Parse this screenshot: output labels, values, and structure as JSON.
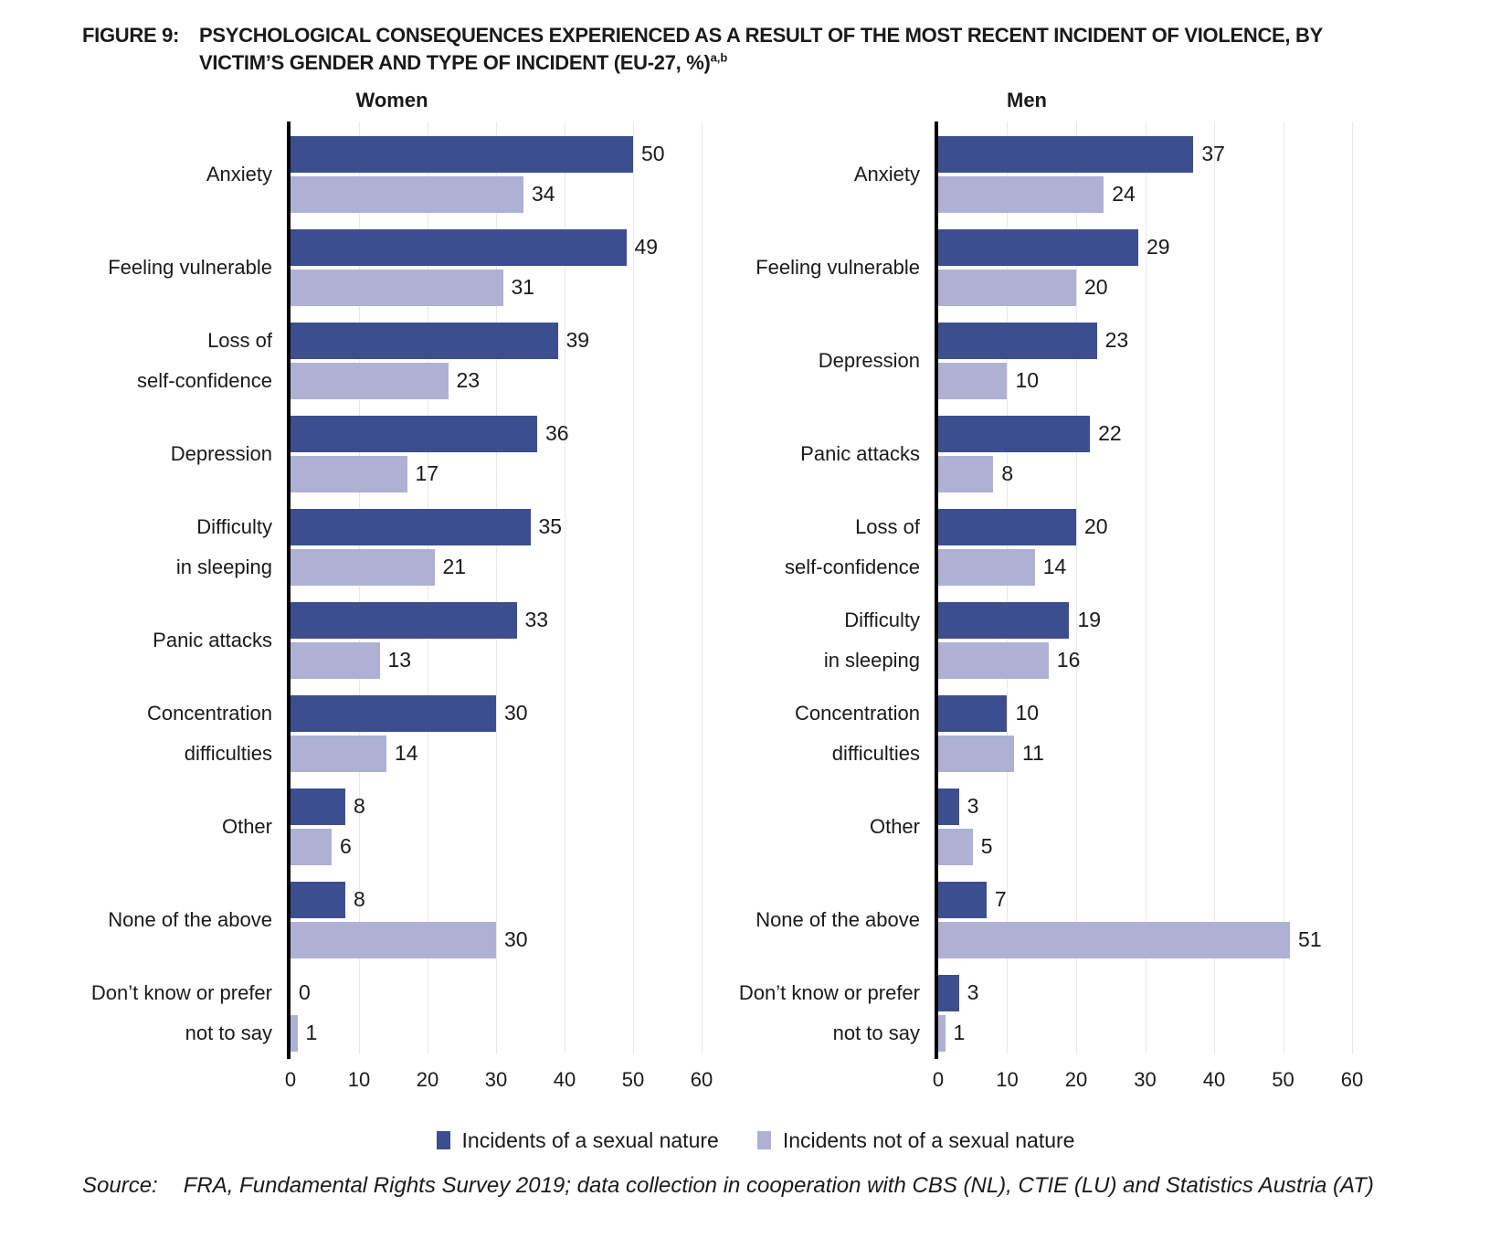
{
  "figure": {
    "label": "FIGURE 9:",
    "title_line1": "PSYCHOLOGICAL CONSEQUENCES EXPERIENCED AS A RESULT OF THE MOST RECENT INCIDENT OF VIOLENCE, BY",
    "title_line2": "VICTIM’S GENDER AND TYPE OF INCIDENT (EU-27, %)",
    "title_superscript": "a,b"
  },
  "colors": {
    "sexual": "#3d4e8f",
    "non_sexual": "#aeb1d4",
    "axis": "#000000",
    "gridline": "#e8e8e8",
    "text": "#1a1a1a"
  },
  "legend": [
    {
      "label": "Incidents of a sexual nature",
      "color": "#3d4e8f"
    },
    {
      "label": "Incidents not of a sexual nature",
      "color": "#aeb1d4"
    }
  ],
  "source": {
    "label": "Source:",
    "text": "FRA, Fundamental Rights Survey 2019; data collection in cooperation with CBS (NL), CTIE (LU) and Statistics Austria (AT)"
  },
  "chart_data": [
    {
      "type": "bar",
      "orientation": "horizontal",
      "panel": "Women",
      "categories": [
        "Anxiety",
        "Feeling vulnerable",
        "Loss of\nself-confidence",
        "Depression",
        "Difficulty\nin sleeping",
        "Panic attacks",
        "Concentration\ndifficulties",
        "Other",
        "None of the above",
        "Don’t know or prefer\nnot to say"
      ],
      "series": [
        {
          "name": "Incidents of a sexual nature",
          "color": "#3d4e8f",
          "values": [
            50,
            49,
            39,
            36,
            35,
            33,
            30,
            8,
            8,
            0
          ]
        },
        {
          "name": "Incidents not of a sexual nature",
          "color": "#aeb1d4",
          "values": [
            34,
            31,
            23,
            17,
            21,
            13,
            14,
            6,
            30,
            1
          ]
        }
      ],
      "xlim": [
        0,
        60
      ],
      "xticks": [
        0,
        10,
        20,
        30,
        40,
        50,
        60
      ],
      "grid": "vertical"
    },
    {
      "type": "bar",
      "orientation": "horizontal",
      "panel": "Men",
      "categories": [
        "Anxiety",
        "Feeling vulnerable",
        "Depression",
        "Panic attacks",
        "Loss of\nself-confidence",
        "Difficulty\nin sleeping",
        "Concentration\ndifficulties",
        "Other",
        "None of the above",
        "Don’t know or prefer\nnot to say"
      ],
      "series": [
        {
          "name": "Incidents of a sexual nature",
          "color": "#3d4e8f",
          "values": [
            37,
            29,
            23,
            22,
            20,
            19,
            10,
            3,
            7,
            3
          ]
        },
        {
          "name": "Incidents not of a sexual nature",
          "color": "#aeb1d4",
          "values": [
            24,
            20,
            10,
            8,
            14,
            16,
            11,
            5,
            51,
            1
          ]
        }
      ],
      "xlim": [
        0,
        60
      ],
      "xticks": [
        0,
        10,
        20,
        30,
        40,
        50,
        60
      ],
      "grid": "vertical"
    }
  ]
}
